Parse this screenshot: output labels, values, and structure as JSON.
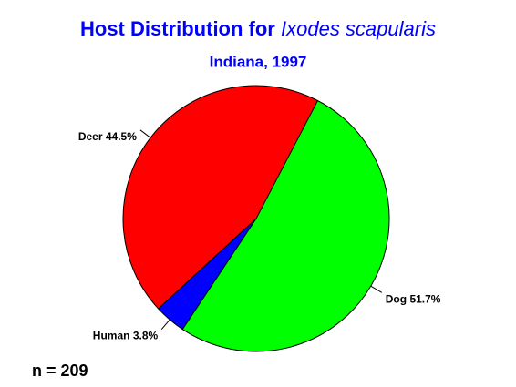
{
  "chart_data": {
    "type": "pie",
    "title": "Host Distribution for",
    "title_italic": "Ixodes scapularis",
    "subtitle": "Indiana, 1997",
    "categories": [
      "Dog",
      "Human",
      "Deer"
    ],
    "values": [
      51.7,
      3.8,
      44.5
    ],
    "value_labels": [
      "51.7%",
      "3.8%",
      "44.5%"
    ],
    "colors": [
      "#00ff00",
      "#0000ff",
      "#ff0000"
    ],
    "n_label": "n =",
    "n": 209
  }
}
